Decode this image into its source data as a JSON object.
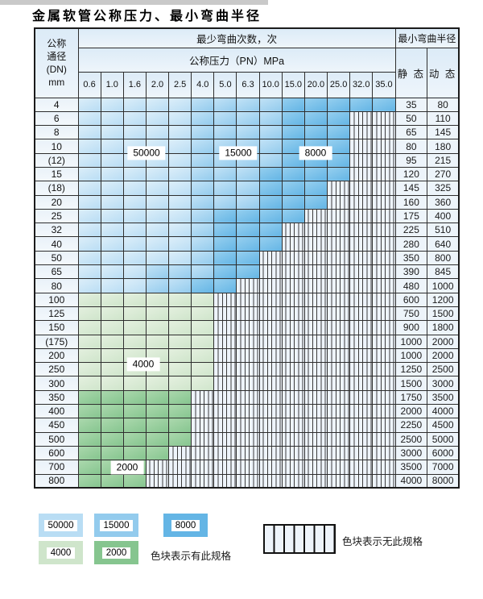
{
  "page": {
    "title": "金属软管公称压力、最小弯曲半径"
  },
  "table": {
    "dn_header_lines": [
      "公称",
      "通径",
      "(DN)",
      "mm"
    ],
    "bend_cycles_header": "最少弯曲次数，次",
    "pressure_header": "公称压力（PN）MPa",
    "radius_header": "最小弯曲半径",
    "static_header": "静 态",
    "dynamic_header": "动 态",
    "pressure_columns": [
      "0.6",
      "1.0",
      "1.6",
      "2.0",
      "2.5",
      "4.0",
      "5.0",
      "6.3",
      "10.0",
      "15.0",
      "20.0",
      "25.0",
      "32.0",
      "35.0"
    ],
    "cell_codes": {
      "A": "50000次",
      "B": "15000次",
      "C": "8000次",
      "D": "4000次",
      "E": "2000次",
      "-": "无此规格"
    },
    "rows": [
      {
        "dn": "4",
        "cells": "AAAAABBBBCCCCC",
        "static": "35",
        "dynamic": "80"
      },
      {
        "dn": "6",
        "cells": "AAAAABBBBCCC--",
        "static": "50",
        "dynamic": "110"
      },
      {
        "dn": "8",
        "cells": "AAAAABBBBCCC--",
        "static": "65",
        "dynamic": "145"
      },
      {
        "dn": "10",
        "cells": "AAAAABBBBCCC--",
        "static": "80",
        "dynamic": "180"
      },
      {
        "dn": "(12)",
        "cells": "AAAAABBBBCCC--",
        "static": "95",
        "dynamic": "215"
      },
      {
        "dn": "15",
        "cells": "AAAAABBBCCCC--",
        "static": "120",
        "dynamic": "270"
      },
      {
        "dn": "(18)",
        "cells": "AAAAABBBCCC---",
        "static": "145",
        "dynamic": "325"
      },
      {
        "dn": "20",
        "cells": "AAAAABBBCCC---",
        "static": "160",
        "dynamic": "360"
      },
      {
        "dn": "25",
        "cells": "AAAAABCCCC----",
        "static": "175",
        "dynamic": "400"
      },
      {
        "dn": "32",
        "cells": "AAAAABCCC-----",
        "static": "225",
        "dynamic": "510"
      },
      {
        "dn": "40",
        "cells": "AAAAABCCC-----",
        "static": "280",
        "dynamic": "640"
      },
      {
        "dn": "50",
        "cells": "AAAAABCC------",
        "static": "350",
        "dynamic": "800"
      },
      {
        "dn": "65",
        "cells": "AAABBBCC------",
        "static": "390",
        "dynamic": "845"
      },
      {
        "dn": "80",
        "cells": "AAABBCC-------",
        "static": "480",
        "dynamic": "1000"
      },
      {
        "dn": "100",
        "cells": "DDDDDD--------",
        "static": "600",
        "dynamic": "1200"
      },
      {
        "dn": "125",
        "cells": "DDDDDD--------",
        "static": "750",
        "dynamic": "1500"
      },
      {
        "dn": "150",
        "cells": "DDDDDD--------",
        "static": "900",
        "dynamic": "1800"
      },
      {
        "dn": "(175)",
        "cells": "DDDDDD--------",
        "static": "1000",
        "dynamic": "2000"
      },
      {
        "dn": "200",
        "cells": "DDDDDD--------",
        "static": "1000",
        "dynamic": "2000"
      },
      {
        "dn": "250",
        "cells": "DDDDDD--------",
        "static": "1250",
        "dynamic": "2500"
      },
      {
        "dn": "300",
        "cells": "DDDDDD--------",
        "static": "1500",
        "dynamic": "3000"
      },
      {
        "dn": "350",
        "cells": "EEEEE---------",
        "static": "1750",
        "dynamic": "3500"
      },
      {
        "dn": "400",
        "cells": "EEEEE---------",
        "static": "2000",
        "dynamic": "4000"
      },
      {
        "dn": "450",
        "cells": "EEEEE---------",
        "static": "2250",
        "dynamic": "4500"
      },
      {
        "dn": "500",
        "cells": "EEEEE---------",
        "static": "2500",
        "dynamic": "5000"
      },
      {
        "dn": "600",
        "cells": "EEEE----------",
        "static": "3000",
        "dynamic": "6000"
      },
      {
        "dn": "700",
        "cells": "EEE-----------",
        "static": "3500",
        "dynamic": "7000"
      },
      {
        "dn": "800",
        "cells": "EEE-----------",
        "static": "4000",
        "dynamic": "8000"
      }
    ],
    "overlay_labels": {
      "l50000": "50000",
      "l15000": "15000",
      "l8000": "8000",
      "l4000": "4000",
      "l2000": "2000"
    }
  },
  "legend": {
    "swatches": [
      {
        "value": "50000",
        "color": "#b9ddf4"
      },
      {
        "value": "15000",
        "color": "#93cbed"
      },
      {
        "value": "8000",
        "color": "#64b5e5"
      },
      {
        "value": "4000",
        "color": "#cfe5cb"
      },
      {
        "value": "2000",
        "color": "#86c58f"
      }
    ],
    "has_spec_note": "色块表示有此规格",
    "no_spec_note": "色块表示无此规格"
  },
  "colors": {
    "band_50000": "#b9ddf4",
    "band_15000": "#93cbed",
    "band_8000": "#64b5e5",
    "band_4000": "#cfe5cb",
    "band_2000": "#86c58f",
    "hatch_bg": "#eef4fb",
    "border": "#2e2e2e"
  }
}
